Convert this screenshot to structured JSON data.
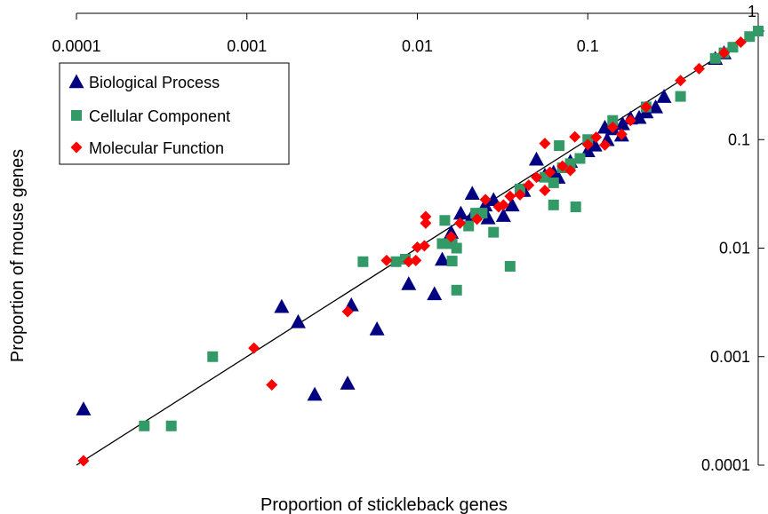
{
  "chart_data": {
    "type": "scatter",
    "xlabel": "Proportion of stickleback genes",
    "ylabel": "Proportion of mouse genes",
    "xscale": "log",
    "yscale": "log",
    "xlim": [
      0.0001,
      1
    ],
    "ylim": [
      5e-05,
      1
    ],
    "x_ticks": [
      0.0001,
      0.001,
      0.01,
      0.1,
      1
    ],
    "x_tick_labels": [
      "0.0001",
      "0.001",
      "0.01",
      "0.1",
      "1"
    ],
    "y_ticks": [
      0.0001,
      0.001,
      0.01,
      0.1,
      1
    ],
    "y_tick_labels": [
      "0.0001",
      "0.001",
      "0.01",
      "0.1",
      "1"
    ],
    "x_axis_position": "top",
    "y_axis_position": "right",
    "grid": false,
    "legend_position": "top-left",
    "reference_line": "y = x",
    "series": [
      {
        "name": "Biological Process",
        "marker": "triangle",
        "color": "#000080",
        "points": [
          [
            0.00011,
            0.00033
          ],
          [
            0.0016,
            0.0029
          ],
          [
            0.002,
            0.0021
          ],
          [
            0.0025,
            0.00045
          ],
          [
            0.0039,
            0.00057
          ],
          [
            0.0041,
            0.003
          ],
          [
            0.0058,
            0.0018
          ],
          [
            0.0089,
            0.0047
          ],
          [
            0.0126,
            0.0038
          ],
          [
            0.014,
            0.0079
          ],
          [
            0.0158,
            0.014
          ],
          [
            0.018,
            0.021
          ],
          [
            0.021,
            0.032
          ],
          [
            0.021,
            0.02
          ],
          [
            0.025,
            0.025
          ],
          [
            0.026,
            0.019
          ],
          [
            0.028,
            0.028
          ],
          [
            0.032,
            0.02
          ],
          [
            0.036,
            0.025
          ],
          [
            0.042,
            0.034
          ],
          [
            0.05,
            0.066
          ],
          [
            0.056,
            0.047
          ],
          [
            0.063,
            0.05
          ],
          [
            0.067,
            0.045
          ],
          [
            0.079,
            0.063
          ],
          [
            0.1,
            0.079
          ],
          [
            0.11,
            0.089
          ],
          [
            0.126,
            0.13
          ],
          [
            0.13,
            0.1
          ],
          [
            0.14,
            0.126
          ],
          [
            0.158,
            0.11
          ],
          [
            0.16,
            0.14
          ],
          [
            0.178,
            0.158
          ],
          [
            0.2,
            0.16
          ],
          [
            0.22,
            0.18
          ],
          [
            0.25,
            0.2
          ],
          [
            0.28,
            0.25
          ],
          [
            0.56,
            0.56
          ],
          [
            0.63,
            0.63
          ]
        ]
      },
      {
        "name": "Cellular Component",
        "marker": "square",
        "color": "#339966",
        "points": [
          [
            0.00025,
            0.00023
          ],
          [
            0.00036,
            0.00023
          ],
          [
            0.00063,
            0.001
          ],
          [
            0.0048,
            0.0075
          ],
          [
            0.0075,
            0.0075
          ],
          [
            0.0085,
            0.0079
          ],
          [
            0.014,
            0.011
          ],
          [
            0.0145,
            0.018
          ],
          [
            0.016,
            0.0076
          ],
          [
            0.016,
            0.011
          ],
          [
            0.017,
            0.0041
          ],
          [
            0.017,
            0.01
          ],
          [
            0.02,
            0.016
          ],
          [
            0.022,
            0.021
          ],
          [
            0.024,
            0.021
          ],
          [
            0.028,
            0.014
          ],
          [
            0.035,
            0.0068
          ],
          [
            0.04,
            0.035
          ],
          [
            0.056,
            0.045
          ],
          [
            0.063,
            0.04
          ],
          [
            0.063,
            0.025
          ],
          [
            0.068,
            0.088
          ],
          [
            0.071,
            0.055
          ],
          [
            0.079,
            0.06
          ],
          [
            0.085,
            0.024
          ],
          [
            0.09,
            0.067
          ],
          [
            0.1,
            0.1
          ],
          [
            0.14,
            0.15
          ],
          [
            0.22,
            0.2
          ],
          [
            0.35,
            0.25
          ],
          [
            0.56,
            0.56
          ],
          [
            0.63,
            0.63
          ],
          [
            0.71,
            0.71
          ],
          [
            0.89,
            0.89
          ],
          [
            1.0,
            1.0
          ]
        ]
      },
      {
        "name": "Molecular Function",
        "marker": "diamond",
        "color": "#ff0000",
        "points": [
          [
            0.00011,
            0.00011
          ],
          [
            0.0011,
            0.0012
          ],
          [
            0.0014,
            0.00055
          ],
          [
            0.0039,
            0.0026
          ],
          [
            0.0066,
            0.0077
          ],
          [
            0.0089,
            0.0075
          ],
          [
            0.0098,
            0.0077
          ],
          [
            0.01,
            0.0102
          ],
          [
            0.011,
            0.0105
          ],
          [
            0.0112,
            0.0195
          ],
          [
            0.0112,
            0.017
          ],
          [
            0.0158,
            0.0127
          ],
          [
            0.0178,
            0.017
          ],
          [
            0.0224,
            0.0185
          ],
          [
            0.0251,
            0.028
          ],
          [
            0.03,
            0.024
          ],
          [
            0.032,
            0.025
          ],
          [
            0.035,
            0.03
          ],
          [
            0.04,
            0.031
          ],
          [
            0.045,
            0.038
          ],
          [
            0.05,
            0.045
          ],
          [
            0.056,
            0.034
          ],
          [
            0.056,
            0.092
          ],
          [
            0.06,
            0.05
          ],
          [
            0.071,
            0.057
          ],
          [
            0.079,
            0.052
          ],
          [
            0.084,
            0.106
          ],
          [
            0.1,
            0.09
          ],
          [
            0.112,
            0.105
          ],
          [
            0.126,
            0.089
          ],
          [
            0.14,
            0.13
          ],
          [
            0.158,
            0.112
          ],
          [
            0.178,
            0.15
          ],
          [
            0.22,
            0.2
          ],
          [
            0.35,
            0.35
          ],
          [
            0.45,
            0.45
          ],
          [
            0.63,
            0.63
          ],
          [
            0.79,
            0.79
          ]
        ]
      }
    ]
  }
}
